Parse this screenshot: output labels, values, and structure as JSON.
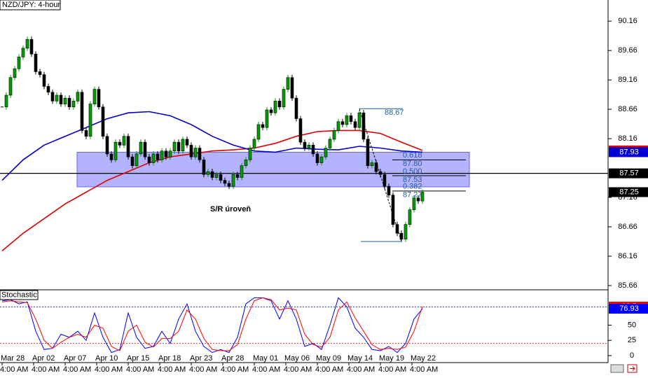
{
  "chart_data": [
    {
      "type": "candlestick",
      "title": "NZD/JPY: 4-hour",
      "xlim": [
        -0.5,
        144.17
      ],
      "ylim": [
        85.6,
        90.52
      ],
      "yticks": [
        85.66,
        86.16,
        86.66,
        87.16,
        88.16,
        88.66,
        89.16,
        89.66,
        90.16
      ],
      "xticks": [
        {
          "value": 0,
          "label": "Mar 28"
        },
        {
          "value": 7.5,
          "label": "Apr 02"
        },
        {
          "value": 15,
          "label": "Apr 07"
        },
        {
          "value": 22.5,
          "label": "Apr 10"
        },
        {
          "value": 30,
          "label": "Apr 15"
        },
        {
          "value": 37.5,
          "label": "Apr 18"
        },
        {
          "value": 45,
          "label": "Apr 23"
        },
        {
          "value": 52.5,
          "label": "Apr 28"
        },
        {
          "value": 60,
          "label": "May 01"
        },
        {
          "value": 67.5,
          "label": "May 06"
        },
        {
          "value": 75,
          "label": "May 09"
        },
        {
          "value": 82.5,
          "label": "May 14"
        },
        {
          "value": 90,
          "label": "May 19"
        },
        {
          "value": 97.5,
          "label": "May 22"
        }
      ],
      "xtick_time": "4:00 AM",
      "up_color": "#00a000",
      "down_color": "#000000",
      "closes": [
        88.7,
        88.9,
        89.2,
        89.35,
        89.55,
        89.7,
        89.85,
        89.6,
        89.3,
        89.25,
        89.05,
        88.95,
        88.8,
        88.9,
        88.75,
        88.85,
        88.7,
        88.8,
        88.95,
        88.3,
        88.2,
        88.75,
        89.0,
        88.7,
        88.2,
        87.9,
        87.8,
        88.1,
        88.05,
        88.2,
        87.85,
        87.7,
        87.9,
        88.1,
        87.85,
        87.75,
        87.9,
        87.8,
        87.95,
        87.85,
        87.95,
        88.1,
        87.95,
        88.15,
        88.05,
        87.85,
        88.0,
        87.8,
        87.55,
        87.6,
        87.5,
        87.55,
        87.45,
        87.4,
        87.35,
        87.55,
        87.5,
        87.7,
        87.8,
        88.0,
        88.15,
        88.4,
        88.35,
        88.65,
        88.6,
        88.8,
        88.7,
        89.0,
        89.2,
        88.85,
        88.5,
        88.1,
        88.0,
        88.05,
        87.9,
        87.75,
        87.85,
        88.0,
        88.15,
        88.3,
        88.45,
        88.4,
        88.55,
        88.45,
        88.35,
        88.6,
        88.15,
        87.7,
        87.75,
        87.6,
        87.55,
        87.35,
        87.2,
        86.7,
        86.55,
        86.45,
        86.7,
        86.95,
        87.15,
        87.1,
        87.25
      ],
      "moving_averages": [
        {
          "color": "#e00000",
          "x": [
            0,
            5,
            10,
            15,
            20,
            25,
            30,
            35,
            40,
            45,
            50,
            55,
            60,
            65,
            70,
            75,
            80,
            85,
            90,
            95,
            100
          ],
          "values": [
            86.25,
            86.55,
            86.8,
            87.05,
            87.25,
            87.45,
            87.6,
            87.75,
            87.85,
            87.9,
            87.95,
            87.97,
            88.0,
            88.08,
            88.2,
            88.28,
            88.3,
            88.3,
            88.25,
            88.1,
            87.96
          ]
        },
        {
          "color": "#0000d0",
          "x": [
            0,
            5,
            10,
            15,
            20,
            25,
            30,
            35,
            40,
            45,
            50,
            55,
            60,
            65,
            70,
            75,
            80,
            85,
            90,
            95,
            100
          ],
          "values": [
            87.45,
            87.8,
            88.05,
            88.2,
            88.35,
            88.5,
            88.6,
            88.62,
            88.55,
            88.4,
            88.2,
            88.05,
            87.95,
            87.93,
            88.0,
            87.98,
            87.97,
            88.03,
            88.0,
            87.95,
            87.93
          ]
        }
      ],
      "zone": {
        "low": 87.34,
        "high": 87.93,
        "color": "#9999ff"
      },
      "hline": 87.57,
      "annotation": "S/R úroveň",
      "fib": {
        "high": 88.67,
        "low": 86.41,
        "x_high": 85,
        "x_low": 95,
        "color": "#1f5f9f",
        "levels": [
          {
            "ratio": "0.618",
            "price": {
              "value": 87.8,
              "label": "87.80"
            }
          },
          {
            "ratio": "0.500",
            "price": 87.53
          },
          {
            "ratio": "0.382",
            "price": 87.27
          }
        ]
      }
    },
    {
      "type": "stochastic",
      "title": "Stochastic",
      "ylim": [
        -11.5,
        106.9
      ],
      "yticks": [
        0,
        25,
        50
      ],
      "levels": [
        20,
        80
      ],
      "series": [
        {
          "color": "#0000ff",
          "x": [
            0,
            2,
            4,
            6,
            8,
            10,
            12,
            14,
            16,
            18,
            20,
            22,
            24,
            26,
            28,
            30,
            32,
            34,
            36,
            38,
            40,
            42,
            44,
            46,
            48,
            50,
            52,
            54,
            56,
            58,
            60,
            62,
            64,
            66,
            68,
            70,
            72,
            74,
            76,
            78,
            80,
            82,
            84,
            86,
            88,
            90,
            92,
            94,
            96,
            98,
            100
          ],
          "values": [
            90,
            92,
            85,
            88,
            40,
            10,
            12,
            35,
            30,
            40,
            25,
            70,
            30,
            5,
            10,
            70,
            30,
            12,
            15,
            40,
            20,
            60,
            85,
            40,
            15,
            5,
            10,
            5,
            30,
            85,
            95,
            95,
            90,
            60,
            90,
            60,
            15,
            20,
            10,
            50,
            95,
            80,
            45,
            30,
            10,
            8,
            15,
            5,
            20,
            60,
            76.93
          ]
        },
        {
          "color": "#ff0000",
          "x": [
            0,
            2,
            4,
            6,
            8,
            10,
            12,
            14,
            16,
            18,
            20,
            22,
            24,
            26,
            28,
            30,
            32,
            34,
            36,
            38,
            40,
            42,
            44,
            46,
            48,
            50,
            52,
            54,
            56,
            58,
            60,
            62,
            64,
            66,
            68,
            70,
            72,
            74,
            76,
            78,
            80,
            82,
            84,
            86,
            88,
            90,
            92,
            94,
            96,
            98,
            100
          ],
          "values": [
            88,
            90,
            88,
            87,
            60,
            25,
            12,
            22,
            30,
            35,
            30,
            50,
            45,
            15,
            8,
            40,
            50,
            22,
            14,
            28,
            28,
            40,
            75,
            60,
            28,
            10,
            8,
            8,
            18,
            60,
            90,
            95,
            92,
            75,
            78,
            75,
            35,
            18,
            14,
            30,
            75,
            88,
            62,
            40,
            18,
            10,
            12,
            10,
            14,
            40,
            80.5
          ]
        }
      ]
    }
  ]
}
